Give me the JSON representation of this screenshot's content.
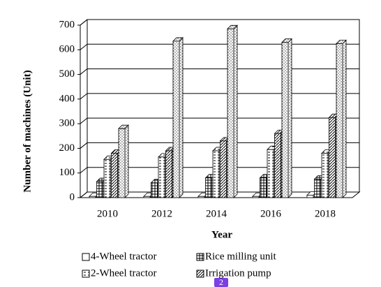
{
  "chart_data": {
    "type": "bar",
    "x_label": "Year",
    "y_label": "Number of machines (Unit)",
    "categories": [
      "2010",
      "2012",
      "2014",
      "2016",
      "2018"
    ],
    "series": [
      {
        "name": "4-Wheel tractor",
        "color": "#000000",
        "values": [
          5,
          5,
          5,
          5,
          10
        ]
      },
      {
        "name": "Rice milling unit",
        "color": "#000000",
        "values": [
          65,
          60,
          80,
          80,
          75
        ]
      },
      {
        "name": "2-Wheel tractor",
        "color": "#000000",
        "values": [
          155,
          165,
          190,
          195,
          180
        ]
      },
      {
        "name": "Irrigation pump",
        "color": "#000000",
        "values": [
          180,
          190,
          230,
          260,
          325
        ]
      },
      {
        "color": "#000000",
        "values": [
          280,
          635,
          685,
          630,
          625
        ]
      }
    ],
    "ylim": [
      0,
      700
    ],
    "yticks": [
      0,
      100,
      200,
      300,
      400,
      500,
      600,
      700
    ],
    "grid": true
  },
  "badge": "2"
}
